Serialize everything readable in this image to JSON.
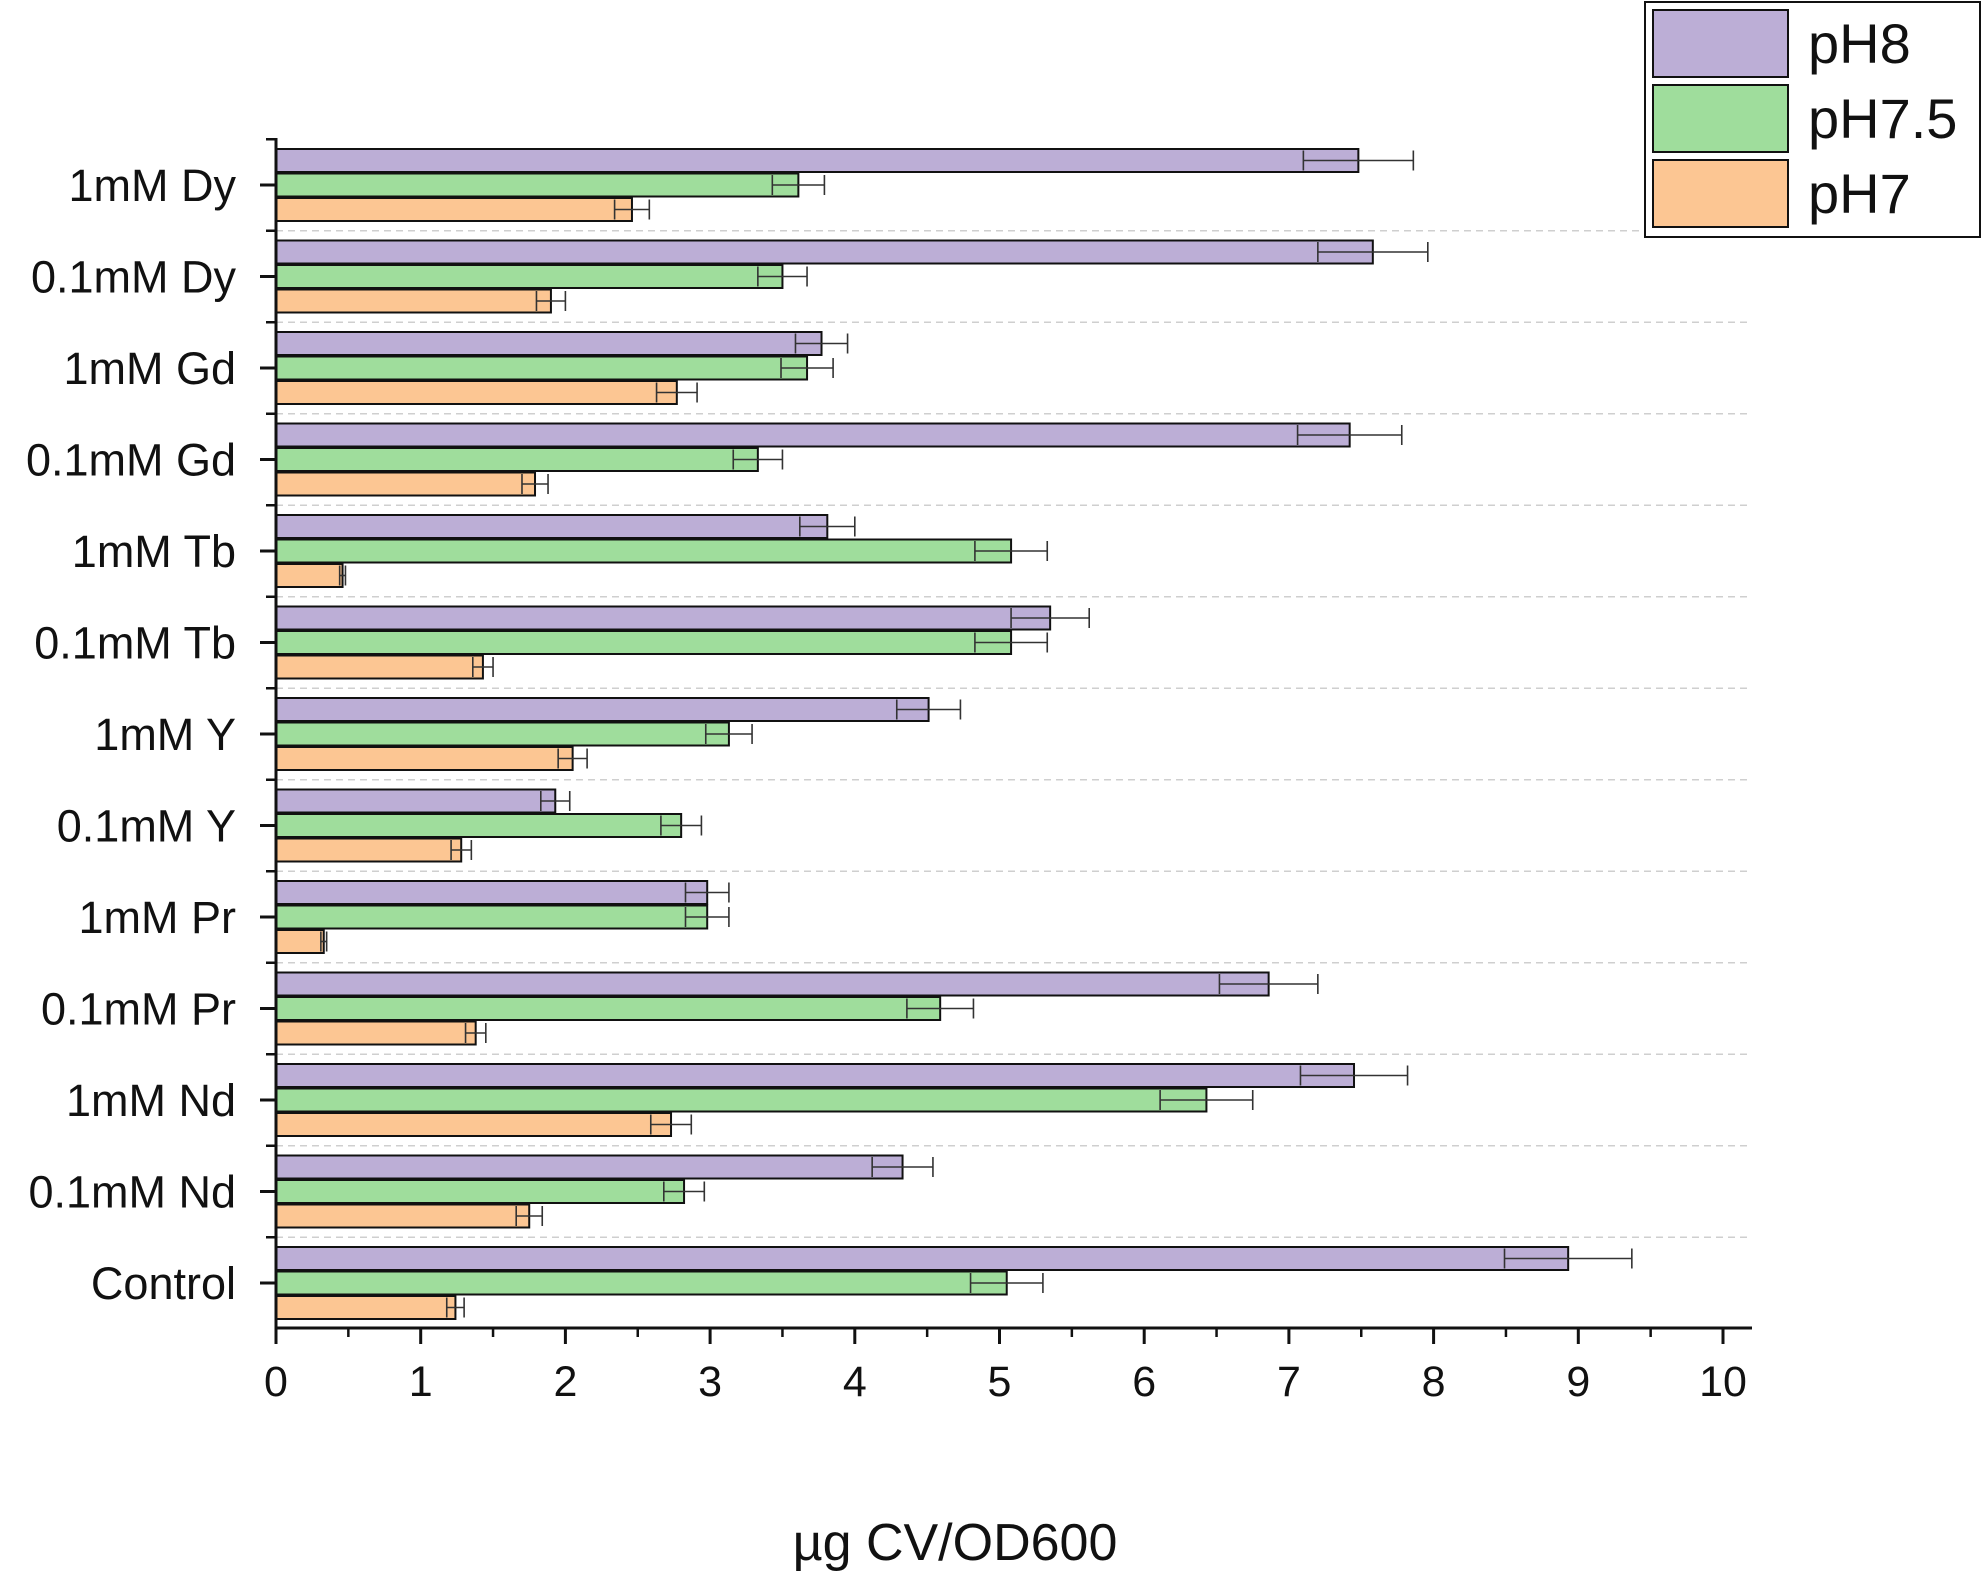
{
  "chart_data": {
    "type": "bar",
    "orientation": "horizontal",
    "title": "",
    "xlabel": "µg CV/OD600",
    "ylabel": "",
    "xlim": [
      0,
      10
    ],
    "xticks": [
      0,
      1,
      2,
      3,
      4,
      5,
      6,
      7,
      8,
      9,
      10
    ],
    "grid": "dashed separators between categories",
    "legend_position": "top-right",
    "categories": [
      "1mM Dy",
      "0.1mM Dy",
      "1mM Gd",
      "0.1mM Gd",
      "1mM Tb",
      "0.1mM Tb",
      "1mM Y",
      "0.1mM Y",
      "1mM Pr",
      "0.1mM Pr",
      "1mM Nd",
      "0.1mM Nd",
      "Control"
    ],
    "series": [
      {
        "name": "pH8",
        "color": "#bcaed6",
        "values": [
          7.48,
          7.58,
          3.77,
          7.42,
          3.81,
          5.35,
          4.51,
          1.93,
          2.98,
          6.86,
          7.45,
          4.33,
          8.93
        ],
        "errors": [
          0.38,
          0.38,
          0.18,
          0.36,
          0.19,
          0.27,
          0.22,
          0.1,
          0.15,
          0.34,
          0.37,
          0.21,
          0.44
        ]
      },
      {
        "name": "pH7.5",
        "color": "#9fdd9c",
        "values": [
          3.61,
          3.5,
          3.67,
          3.33,
          5.08,
          5.08,
          3.13,
          2.8,
          2.98,
          4.59,
          6.43,
          2.82,
          5.05
        ],
        "errors": [
          0.18,
          0.17,
          0.18,
          0.17,
          0.25,
          0.25,
          0.16,
          0.14,
          0.15,
          0.23,
          0.32,
          0.14,
          0.25
        ]
      },
      {
        "name": "pH7",
        "color": "#fcc693",
        "values": [
          2.46,
          1.9,
          2.77,
          1.79,
          0.46,
          1.43,
          2.05,
          1.28,
          0.33,
          1.38,
          2.73,
          1.75,
          1.24
        ],
        "errors": [
          0.12,
          0.1,
          0.14,
          0.09,
          0.02,
          0.07,
          0.1,
          0.07,
          0.02,
          0.07,
          0.14,
          0.09,
          0.06
        ]
      }
    ]
  }
}
